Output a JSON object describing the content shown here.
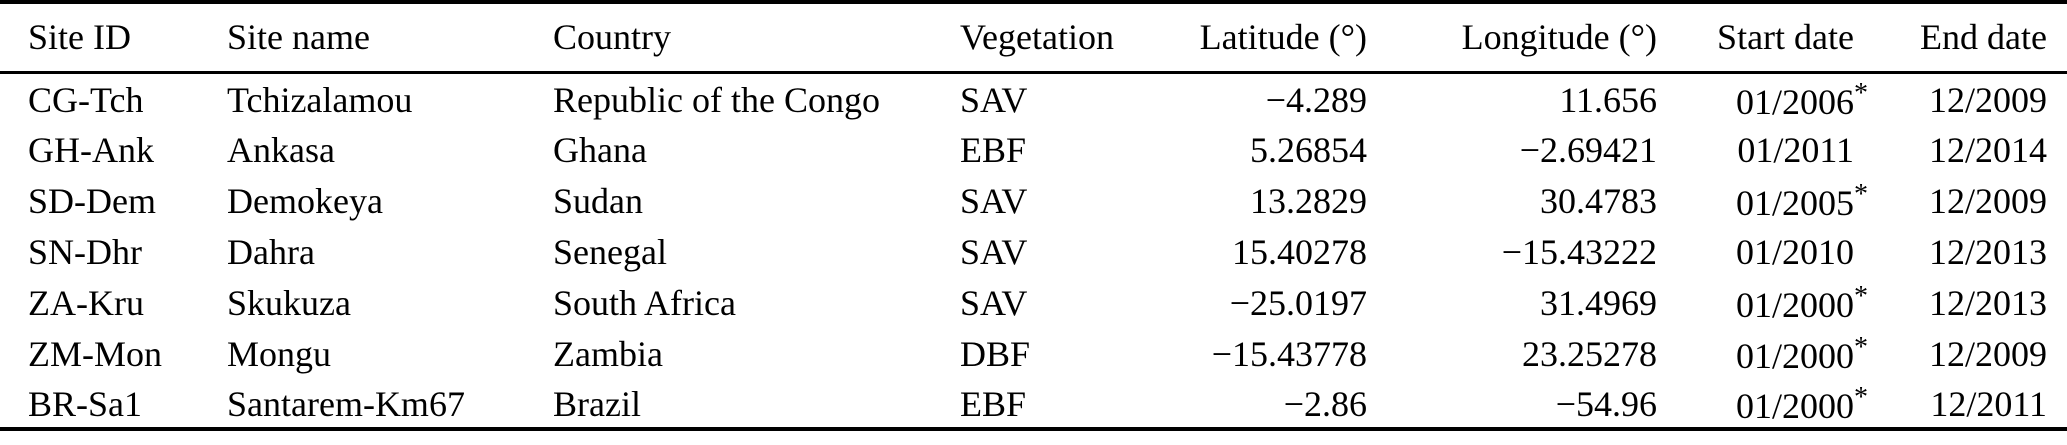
{
  "table": {
    "name": "flux-site-metadata-table",
    "columns": [
      {
        "key": "site_id",
        "label": "Site ID",
        "align": "left"
      },
      {
        "key": "site_name",
        "label": "Site name",
        "align": "left"
      },
      {
        "key": "country",
        "label": "Country",
        "align": "left"
      },
      {
        "key": "vegetation",
        "label": "Vegetation",
        "align": "left"
      },
      {
        "key": "latitude",
        "label": "Latitude (°)",
        "align": "right"
      },
      {
        "key": "longitude",
        "label": "Longitude (°)",
        "align": "right"
      },
      {
        "key": "start_date",
        "label": "Start date",
        "align": "right",
        "reserve_star": true
      },
      {
        "key": "end_date",
        "label": "End date",
        "align": "right"
      }
    ],
    "rows": [
      {
        "site_id": "CG-Tch",
        "site_name": "Tchizalamou",
        "country": "Republic of the Congo",
        "vegetation": "SAV",
        "latitude": "−4.289",
        "longitude": "11.656",
        "start_date": "01/2006*",
        "end_date": "12/2009"
      },
      {
        "site_id": "GH-Ank",
        "site_name": "Ankasa",
        "country": "Ghana",
        "vegetation": "EBF",
        "latitude": "5.26854",
        "longitude": "−2.69421",
        "start_date": "01/2011",
        "end_date": "12/2014"
      },
      {
        "site_id": "SD-Dem",
        "site_name": "Demokeya",
        "country": "Sudan",
        "vegetation": "SAV",
        "latitude": "13.2829",
        "longitude": "30.4783",
        "start_date": "01/2005*",
        "end_date": "12/2009"
      },
      {
        "site_id": "SN-Dhr",
        "site_name": "Dahra",
        "country": "Senegal",
        "vegetation": "SAV",
        "latitude": "15.40278",
        "longitude": "−15.43222",
        "start_date": "01/2010",
        "end_date": "12/2013"
      },
      {
        "site_id": "ZA-Kru",
        "site_name": "Skukuza",
        "country": "South Africa",
        "vegetation": "SAV",
        "latitude": "−25.0197",
        "longitude": "31.4969",
        "start_date": "01/2000*",
        "end_date": "12/2013"
      },
      {
        "site_id": "ZM-Mon",
        "site_name": "Mongu",
        "country": "Zambia",
        "vegetation": "DBF",
        "latitude": "−15.43778",
        "longitude": "23.25278",
        "start_date": "01/2000*",
        "end_date": "12/2009"
      },
      {
        "site_id": "BR-Sa1",
        "site_name": "Santarem-Km67",
        "country": "Brazil",
        "vegetation": "EBF",
        "latitude": "−2.86",
        "longitude": "−54.96",
        "start_date": "01/2000*",
        "end_date": "12/2011"
      }
    ],
    "colors": {
      "text": "#000000",
      "background": "#ffffff",
      "rule": "#000000"
    }
  }
}
